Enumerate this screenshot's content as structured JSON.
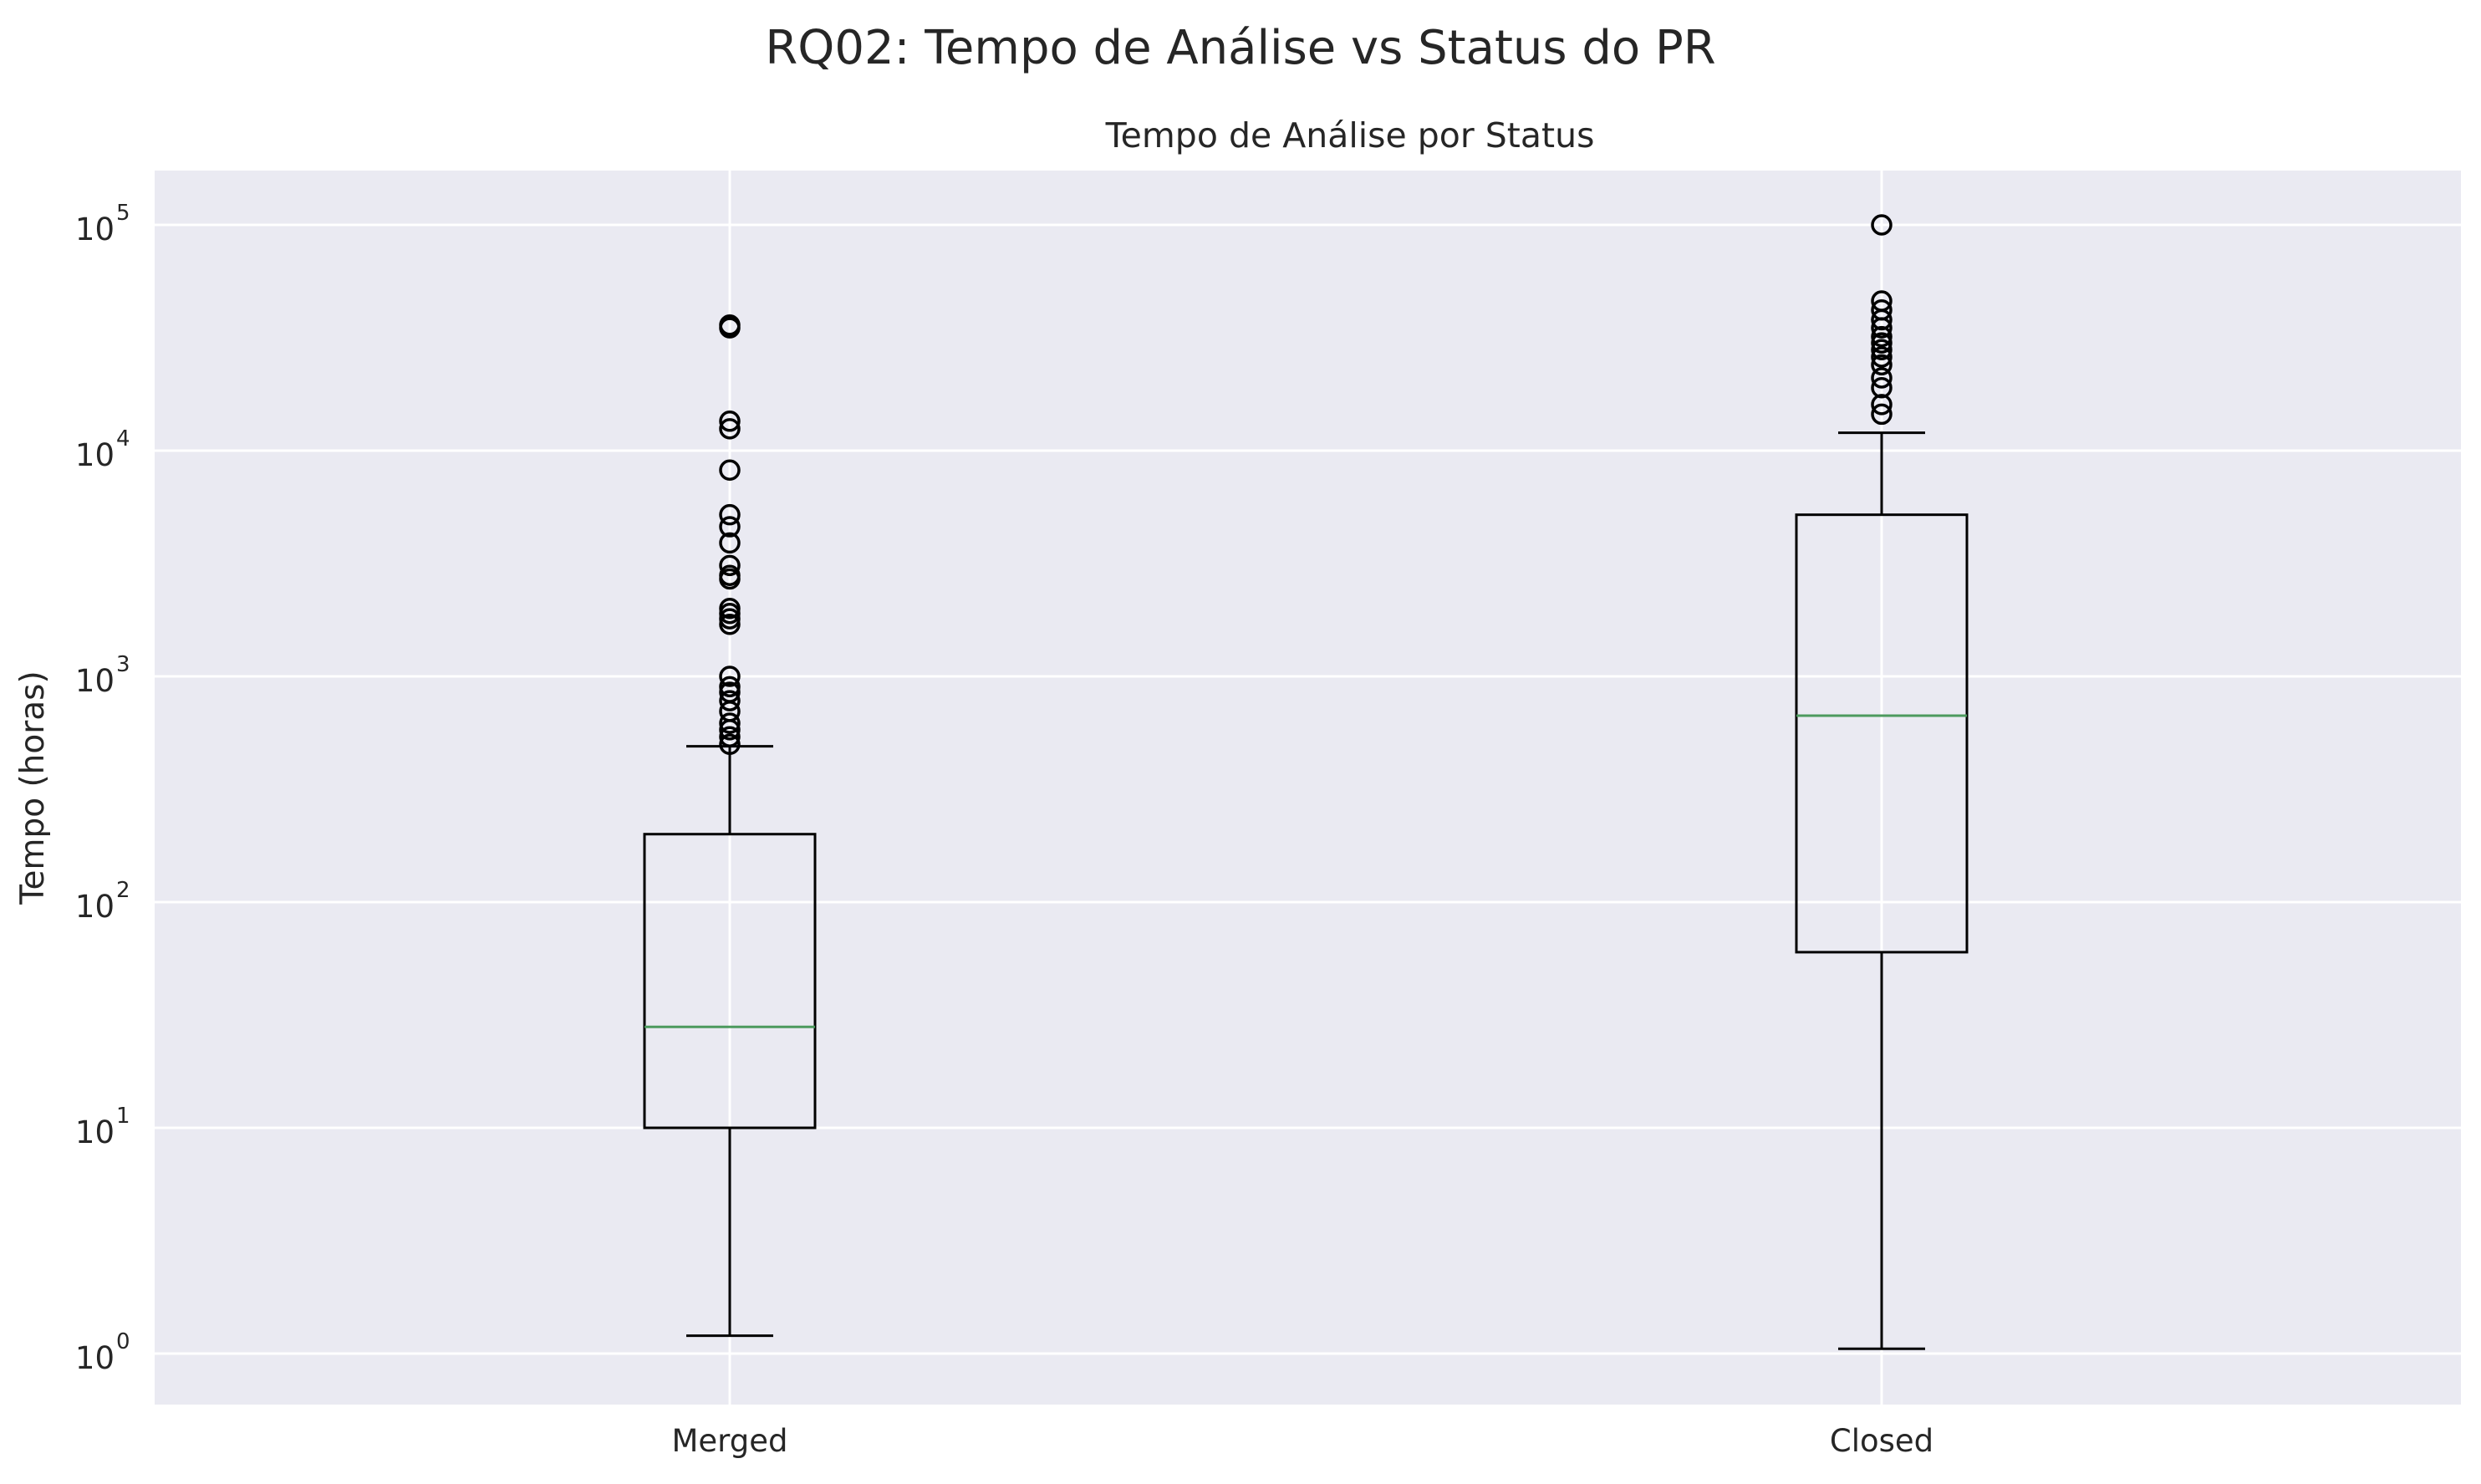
{
  "figure": {
    "suptitle": "RQ02: Tempo de Análise vs Status do PR"
  },
  "chart_data": {
    "type": "box",
    "title": "Tempo de Análise por Status",
    "xlabel": "",
    "ylabel": "Tempo (horas)",
    "yscale": "log",
    "ylim": [
      0.58,
      180000
    ],
    "yticks": [
      {
        "value": 1,
        "base": "10",
        "exp": "0"
      },
      {
        "value": 10,
        "base": "10",
        "exp": "1"
      },
      {
        "value": 100,
        "base": "10",
        "exp": "2"
      },
      {
        "value": 1000,
        "base": "10",
        "exp": "3"
      },
      {
        "value": 10000,
        "base": "10",
        "exp": "4"
      },
      {
        "value": 100000,
        "base": "10",
        "exp": "5"
      }
    ],
    "grid": true,
    "colors": {
      "plot_background": "#EAEAF2",
      "grid": "#FFFFFF",
      "box": "#000000",
      "median": "#4C9A5E",
      "text": "#262626"
    },
    "categories": [
      "Merged",
      "Closed"
    ],
    "boxes": [
      {
        "name": "Merged",
        "whisker_low": 1.2,
        "q1": 10,
        "median": 28,
        "q3": 200,
        "whisker_high": 490,
        "outliers": [
          36000,
          35000,
          13500,
          12500,
          8200,
          5200,
          4600,
          3900,
          3100,
          2800,
          2700,
          2000,
          1900,
          1800,
          1700,
          1000,
          900,
          850,
          780,
          700,
          620,
          580,
          540,
          500
        ]
      },
      {
        "name": "Closed",
        "whisker_low": 1.05,
        "q1": 60,
        "median": 670,
        "q3": 5200,
        "whisker_high": 12000,
        "outliers": [
          100000,
          46000,
          42000,
          38000,
          35000,
          32000,
          30000,
          28000,
          26000,
          24000,
          21000,
          19000,
          16000,
          14500
        ]
      }
    ]
  }
}
